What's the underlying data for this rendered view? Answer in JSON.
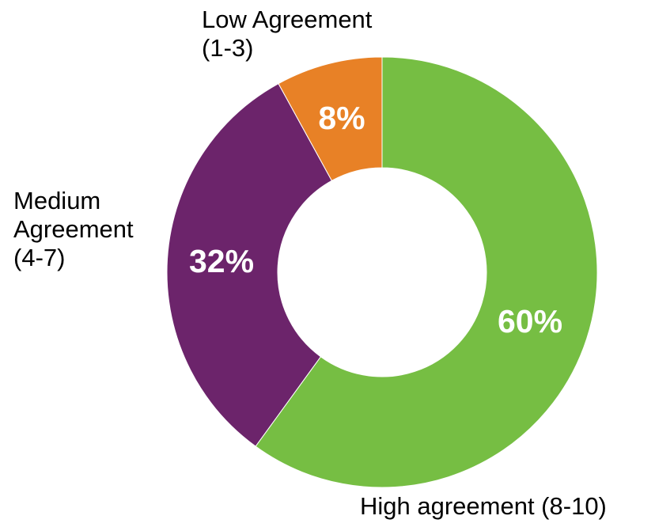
{
  "chart_data": {
    "type": "pie",
    "variant": "donut",
    "title": "",
    "slices": [
      {
        "label": "High agreement (8-10)",
        "value": 60,
        "value_label": "60%",
        "color": "#76BE43"
      },
      {
        "label": "Medium\nAgreement\n(4-7)",
        "value": 32,
        "value_label": "32%",
        "color": "#6C246B"
      },
      {
        "label": "Low Agreement\n(1-3)",
        "value": 8,
        "value_label": "8%",
        "color": "#E88126"
      }
    ],
    "start": "top",
    "direction": "clockwise",
    "legend": "none"
  }
}
